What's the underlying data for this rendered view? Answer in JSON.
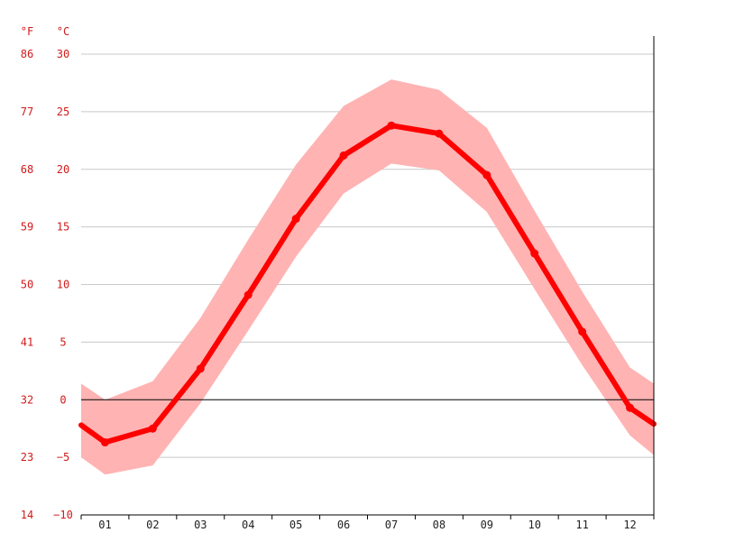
{
  "chart_data": {
    "type": "line",
    "title": "",
    "xlabel": "",
    "ylabel": "",
    "units": {
      "left_outer": "°F",
      "left_inner": "°C"
    },
    "categories": [
      "01",
      "02",
      "03",
      "04",
      "05",
      "06",
      "07",
      "08",
      "09",
      "10",
      "11",
      "12"
    ],
    "y_ticks_c": [
      "30",
      "25",
      "20",
      "15",
      "10",
      "5",
      "0",
      "−5",
      "−10"
    ],
    "y_ticks_f": [
      "86",
      "77",
      "68",
      "59",
      "50",
      "41",
      "32",
      "23",
      "14"
    ],
    "ylim": [
      -10,
      30
    ],
    "grid": true,
    "series": [
      {
        "values": [
          -3.7,
          -2.5,
          2.7,
          9.1,
          15.7,
          21.2,
          23.8,
          23.1,
          19.5,
          12.7,
          5.9,
          -0.7
        ]
      }
    ],
    "band": {
      "upper": [
        0.0,
        1.6,
        7.1,
        13.9,
        20.4,
        25.5,
        27.8,
        26.9,
        23.6,
        16.4,
        9.4,
        2.8
      ],
      "lower": [
        -6.5,
        -5.7,
        -0.3,
        6.0,
        12.4,
        17.9,
        20.5,
        19.9,
        16.3,
        9.6,
        3.0,
        -3.1
      ]
    },
    "edges": {
      "main_start": -2.2,
      "main_end": -2.1,
      "upper_start": 1.4,
      "upper_end": 1.4,
      "lower_start": -5.0,
      "lower_end": -4.8
    },
    "colors": {
      "line": "#ff0000",
      "band": "#ffb3b3",
      "grid": "#c8c8c8",
      "zero_line": "#000000",
      "axis_labels_y": "#d11a1a",
      "axis_labels_x": "#222222"
    }
  }
}
